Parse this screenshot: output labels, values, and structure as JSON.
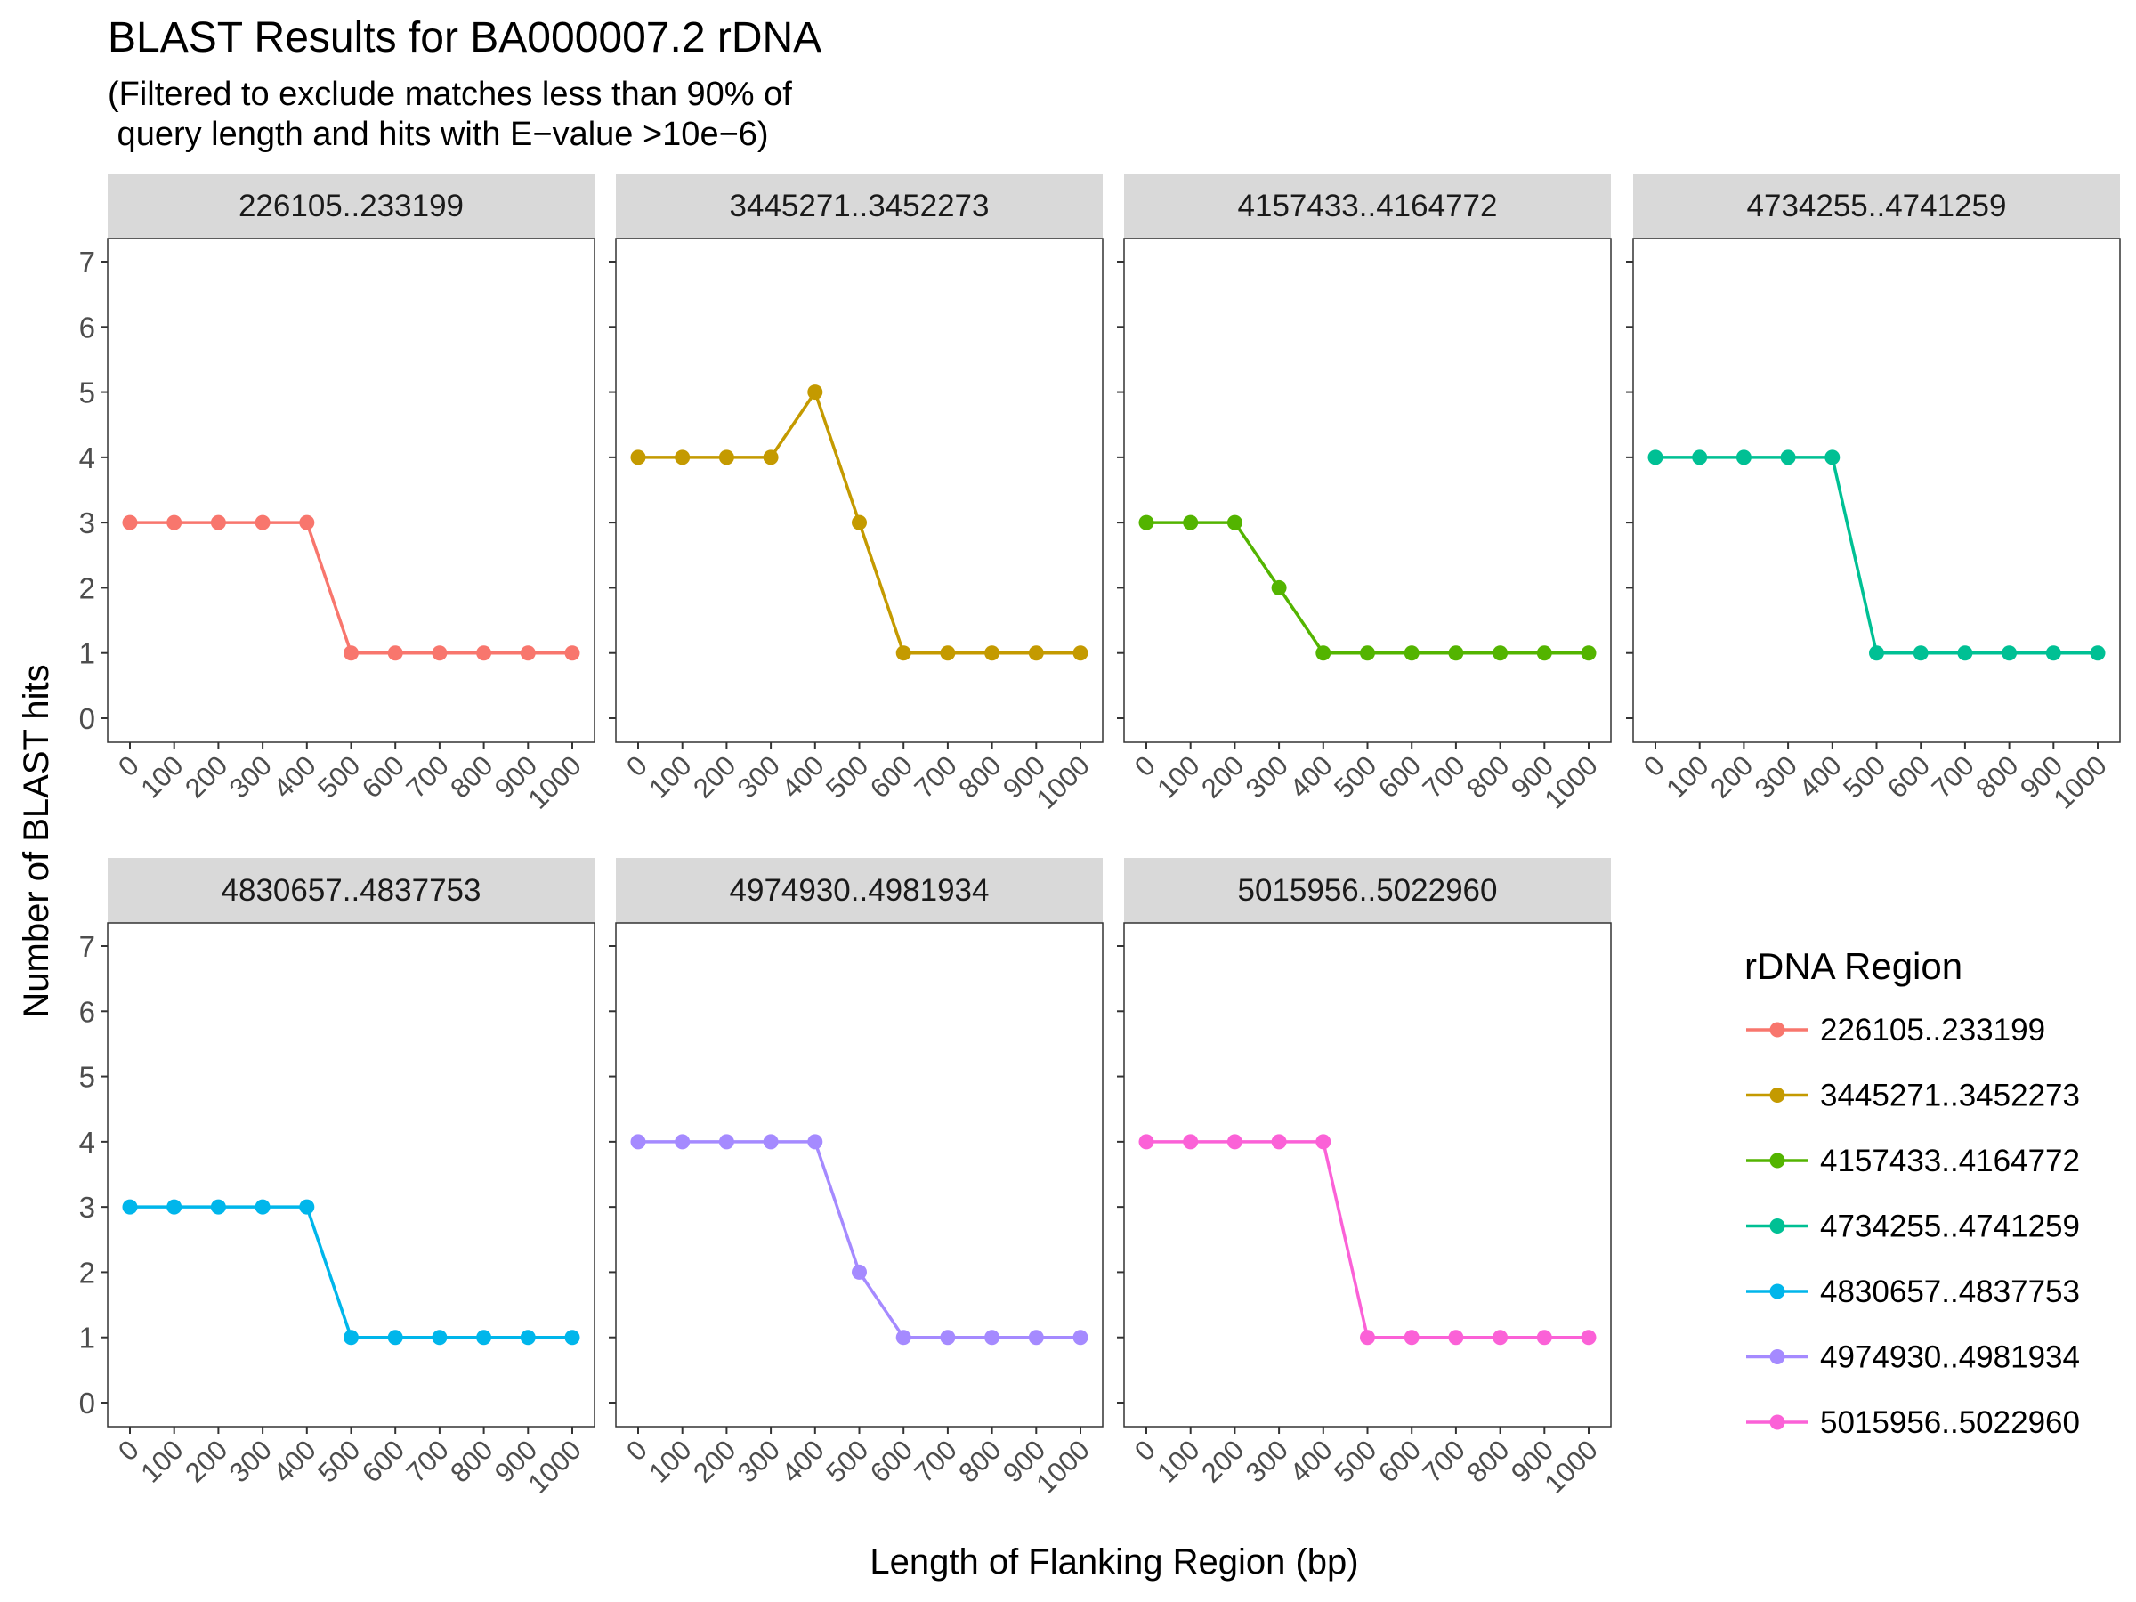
{
  "chart_data": {
    "type": "line",
    "title": "BLAST Results for BA000007.2 rDNA",
    "subtitle_lines": [
      "(Filtered to exclude matches less than 90% of",
      " query length and hits with E−value >10e−6)"
    ],
    "xlabel": "Length of Flanking Region (bp)",
    "ylabel": "Number of BLAST hits",
    "x": [
      0,
      100,
      200,
      300,
      400,
      500,
      600,
      700,
      800,
      900,
      1000
    ],
    "x_tick_labels": [
      "0",
      "100",
      "200",
      "300",
      "400",
      "500",
      "600",
      "700",
      "800",
      "900",
      "1000"
    ],
    "y_ticks": [
      0,
      1,
      2,
      3,
      4,
      5,
      6,
      7
    ],
    "ylim": [
      0,
      7
    ],
    "grid": false,
    "facets": "wrap, 4 columns",
    "legend": {
      "title": "rDNA Region",
      "placement": "right"
    },
    "series": [
      {
        "name": "226105..233199",
        "color": "#F8766D",
        "values": [
          3,
          3,
          3,
          3,
          3,
          1,
          1,
          1,
          1,
          1,
          1
        ]
      },
      {
        "name": "3445271..3452273",
        "color": "#C49A00",
        "values": [
          4,
          4,
          4,
          4,
          5,
          3,
          1,
          1,
          1,
          1,
          1
        ]
      },
      {
        "name": "4157433..4164772",
        "color": "#53B400",
        "values": [
          3,
          3,
          3,
          2,
          1,
          1,
          1,
          1,
          1,
          1,
          1
        ]
      },
      {
        "name": "4734255..4741259",
        "color": "#00C094",
        "values": [
          4,
          4,
          4,
          4,
          4,
          1,
          1,
          1,
          1,
          1,
          1
        ]
      },
      {
        "name": "4830657..4837753",
        "color": "#00B6EB",
        "values": [
          3,
          3,
          3,
          3,
          3,
          1,
          1,
          1,
          1,
          1,
          1
        ]
      },
      {
        "name": "4974930..4981934",
        "color": "#A58AFF",
        "values": [
          4,
          4,
          4,
          4,
          4,
          2,
          1,
          1,
          1,
          1,
          1
        ]
      },
      {
        "name": "5015956..5022960",
        "color": "#FB61D7",
        "values": [
          4,
          4,
          4,
          4,
          4,
          1,
          1,
          1,
          1,
          1,
          1
        ]
      }
    ]
  }
}
